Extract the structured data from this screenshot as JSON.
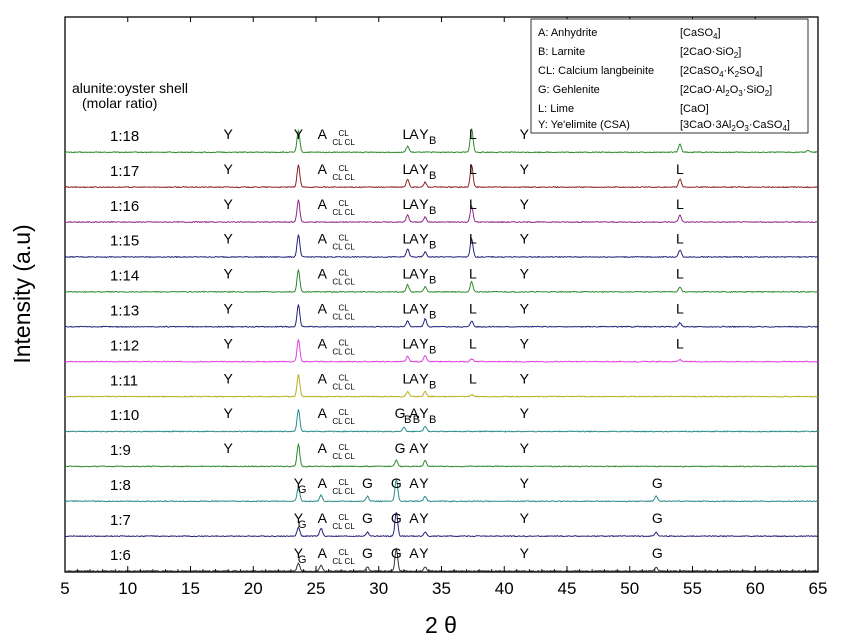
{
  "chart_data": {
    "type": "line",
    "title": "",
    "xlabel": "2 θ",
    "ylabel": "Intensity (a.u)",
    "xlim": [
      5,
      65
    ],
    "xticks": [
      5,
      10,
      15,
      20,
      25,
      30,
      35,
      40,
      45,
      50,
      55,
      60,
      65
    ],
    "grid": false,
    "ratio_header": [
      "alunite:oyster shell",
      "(molar ratio)"
    ],
    "legend": {
      "placement": "top-right",
      "entries": [
        {
          "key": "A: Anhydrite",
          "formula": "[CaSO4]"
        },
        {
          "key": "B: Larnite",
          "formula": "[2CaO·SiO2]"
        },
        {
          "key": "CL: Calcium langbeinite",
          "formula": "[2CaSO4·K2SO4]"
        },
        {
          "key": "G: Gehlenite",
          "formula": "[2CaO·Al2O3·SiO2]"
        },
        {
          "key": "L: Lime",
          "formula": "[CaO]"
        },
        {
          "key": "Y: Ye'elimite (CSA)",
          "formula": "[3CaO·3Al2O3·CaSO4]"
        }
      ]
    },
    "series": [
      {
        "name": "1:18",
        "color": "#2e8b2e",
        "peaks": [
          [
            23.6,
            22
          ],
          [
            32.3,
            6
          ],
          [
            37.4,
            24
          ],
          [
            54.0,
            8
          ],
          [
            64.2,
            2
          ]
        ]
      },
      {
        "name": "1:17",
        "color": "#8b2323",
        "peaks": [
          [
            23.6,
            22
          ],
          [
            32.3,
            8
          ],
          [
            33.7,
            5
          ],
          [
            37.4,
            22
          ],
          [
            54.0,
            8
          ]
        ]
      },
      {
        "name": "1:16",
        "color": "#8b2a8b",
        "peaks": [
          [
            23.6,
            22
          ],
          [
            32.3,
            7
          ],
          [
            33.7,
            5
          ],
          [
            37.4,
            16
          ],
          [
            54.0,
            7
          ]
        ]
      },
      {
        "name": "1:15",
        "color": "#24247a",
        "peaks": [
          [
            23.6,
            22
          ],
          [
            32.3,
            8
          ],
          [
            33.7,
            5
          ],
          [
            37.4,
            18
          ],
          [
            54.0,
            7
          ]
        ]
      },
      {
        "name": "1:14",
        "color": "#2e8b2e",
        "peaks": [
          [
            23.6,
            22
          ],
          [
            32.3,
            7
          ],
          [
            33.7,
            5
          ],
          [
            37.4,
            10
          ],
          [
            54.0,
            5
          ]
        ]
      },
      {
        "name": "1:13",
        "color": "#24247a",
        "peaks": [
          [
            23.6,
            22
          ],
          [
            32.3,
            6
          ],
          [
            33.7,
            8
          ],
          [
            37.4,
            6
          ],
          [
            54.0,
            4
          ]
        ]
      },
      {
        "name": "1:12",
        "color": "#e040e0",
        "peaks": [
          [
            23.6,
            22
          ],
          [
            32.3,
            5
          ],
          [
            33.7,
            6
          ],
          [
            37.4,
            3
          ],
          [
            54.0,
            2
          ]
        ]
      },
      {
        "name": "1:11",
        "color": "#b8b020",
        "peaks": [
          [
            23.6,
            22
          ],
          [
            32.3,
            5
          ],
          [
            33.7,
            5
          ],
          [
            37.4,
            2
          ]
        ]
      },
      {
        "name": "1:10",
        "color": "#2a8b8b",
        "peaks": [
          [
            23.6,
            22
          ],
          [
            32.0,
            4
          ],
          [
            33.7,
            5
          ]
        ]
      },
      {
        "name": "1:9",
        "color": "#2e8b2e",
        "peaks": [
          [
            23.6,
            22
          ],
          [
            31.4,
            6
          ],
          [
            33.7,
            6
          ]
        ]
      },
      {
        "name": "1:8",
        "color": "#2a8b8b",
        "peaks": [
          [
            23.6,
            14
          ],
          [
            25.4,
            6
          ],
          [
            29.1,
            5
          ],
          [
            31.4,
            22
          ],
          [
            33.7,
            5
          ],
          [
            52.1,
            5
          ]
        ]
      },
      {
        "name": "1:7",
        "color": "#24247a",
        "peaks": [
          [
            23.6,
            9
          ],
          [
            25.4,
            8
          ],
          [
            29.1,
            4
          ],
          [
            31.4,
            24
          ],
          [
            33.7,
            4
          ],
          [
            52.1,
            4
          ]
        ]
      },
      {
        "name": "1:6",
        "color": "#333333",
        "peaks": [
          [
            23.6,
            8
          ],
          [
            25.4,
            6
          ],
          [
            29.1,
            4
          ],
          [
            31.4,
            22
          ],
          [
            33.7,
            4
          ],
          [
            52.1,
            4
          ]
        ]
      }
    ],
    "annotations": [
      {
        "row": "1:18",
        "items": [
          [
            "Y",
            18.0
          ],
          [
            "Y",
            23.6
          ],
          [
            "A",
            25.5
          ],
          [
            "CL",
            27.2
          ],
          [
            "L",
            32.2
          ],
          [
            "A",
            32.8
          ],
          [
            "Y",
            33.6
          ],
          [
            "B",
            34.3
          ],
          [
            "L",
            37.5
          ],
          [
            "Y",
            41.6
          ]
        ]
      },
      {
        "row": "1:17",
        "items": [
          [
            "Y",
            18.0
          ],
          [
            "A",
            25.5
          ],
          [
            "CL",
            27.2
          ],
          [
            "L",
            32.2
          ],
          [
            "A",
            32.8
          ],
          [
            "Y",
            33.6
          ],
          [
            "B",
            34.3
          ],
          [
            "L",
            37.5
          ],
          [
            "Y",
            41.6
          ],
          [
            "L",
            54.0
          ]
        ]
      },
      {
        "row": "1:16",
        "items": [
          [
            "Y",
            18.0
          ],
          [
            "A",
            25.5
          ],
          [
            "CL",
            27.2
          ],
          [
            "L",
            32.2
          ],
          [
            "A",
            32.8
          ],
          [
            "Y",
            33.6
          ],
          [
            "B",
            34.3
          ],
          [
            "L",
            37.5
          ],
          [
            "Y",
            41.6
          ],
          [
            "L",
            54.0
          ]
        ]
      },
      {
        "row": "1:15",
        "items": [
          [
            "Y",
            18.0
          ],
          [
            "A",
            25.5
          ],
          [
            "CL",
            27.2
          ],
          [
            "L",
            32.2
          ],
          [
            "A",
            32.8
          ],
          [
            "Y",
            33.6
          ],
          [
            "B",
            34.3
          ],
          [
            "L",
            37.5
          ],
          [
            "Y",
            41.6
          ],
          [
            "L",
            54.0
          ]
        ]
      },
      {
        "row": "1:14",
        "items": [
          [
            "Y",
            18.0
          ],
          [
            "A",
            25.5
          ],
          [
            "CL",
            27.2
          ],
          [
            "L",
            32.2
          ],
          [
            "A",
            32.8
          ],
          [
            "Y",
            33.6
          ],
          [
            "B",
            34.3
          ],
          [
            "L",
            37.5
          ],
          [
            "Y",
            41.6
          ],
          [
            "L",
            54.0
          ]
        ]
      },
      {
        "row": "1:13",
        "items": [
          [
            "Y",
            18.0
          ],
          [
            "A",
            25.5
          ],
          [
            "CL",
            27.2
          ],
          [
            "L",
            32.2
          ],
          [
            "A",
            32.8
          ],
          [
            "Y",
            33.6
          ],
          [
            "B",
            34.3
          ],
          [
            "L",
            37.5
          ],
          [
            "Y",
            41.6
          ],
          [
            "L",
            54.0
          ]
        ]
      },
      {
        "row": "1:12",
        "items": [
          [
            "Y",
            18.0
          ],
          [
            "A",
            25.5
          ],
          [
            "CL",
            27.2
          ],
          [
            "L",
            32.2
          ],
          [
            "A",
            32.8
          ],
          [
            "Y",
            33.6
          ],
          [
            "B",
            34.3
          ],
          [
            "L",
            37.5
          ],
          [
            "Y",
            41.6
          ],
          [
            "L",
            54.0
          ]
        ]
      },
      {
        "row": "1:11",
        "items": [
          [
            "Y",
            18.0
          ],
          [
            "A",
            25.5
          ],
          [
            "CL",
            27.2
          ],
          [
            "L",
            32.2
          ],
          [
            "A",
            32.8
          ],
          [
            "Y",
            33.6
          ],
          [
            "B",
            34.3
          ],
          [
            "L",
            37.5
          ],
          [
            "Y",
            41.6
          ]
        ]
      },
      {
        "row": "1:10",
        "items": [
          [
            "Y",
            18.0
          ],
          [
            "A",
            25.5
          ],
          [
            "CL",
            27.2
          ],
          [
            "G",
            31.7
          ],
          [
            "B",
            32.3
          ],
          [
            "A",
            32.8
          ],
          [
            "B",
            33.0
          ],
          [
            "Y",
            33.6
          ],
          [
            "B",
            34.3
          ],
          [
            "Y",
            41.6
          ]
        ]
      },
      {
        "row": "1:9",
        "items": [
          [
            "Y",
            18.0
          ],
          [
            "A",
            25.5
          ],
          [
            "CL",
            27.2
          ],
          [
            "G",
            31.7
          ],
          [
            "A",
            32.8
          ],
          [
            "Y",
            33.6
          ],
          [
            "Y",
            41.6
          ]
        ]
      },
      {
        "row": "1:8",
        "items": [
          [
            "Y",
            23.6
          ],
          [
            "G",
            23.9
          ],
          [
            "A",
            25.5
          ],
          [
            "CL",
            27.2
          ],
          [
            "G",
            29.1
          ],
          [
            "G",
            31.4
          ],
          [
            "A",
            32.8
          ],
          [
            "Y",
            33.6
          ],
          [
            "Y",
            41.6
          ],
          [
            "G",
            52.2
          ]
        ]
      },
      {
        "row": "1:7",
        "items": [
          [
            "Y",
            23.6
          ],
          [
            "G",
            23.9
          ],
          [
            "A",
            25.5
          ],
          [
            "CL",
            27.2
          ],
          [
            "G",
            29.1
          ],
          [
            "G",
            31.4
          ],
          [
            "A",
            32.8
          ],
          [
            "Y",
            33.6
          ],
          [
            "Y",
            41.6
          ],
          [
            "G",
            52.2
          ]
        ]
      },
      {
        "row": "1:6",
        "items": [
          [
            "Y",
            23.6
          ],
          [
            "G",
            23.9
          ],
          [
            "A",
            25.5
          ],
          [
            "CL",
            27.2
          ],
          [
            "G",
            29.1
          ],
          [
            "G",
            31.4
          ],
          [
            "A",
            32.8
          ],
          [
            "Y",
            33.6
          ],
          [
            "Y",
            41.6
          ],
          [
            "G",
            52.2
          ]
        ]
      }
    ]
  }
}
